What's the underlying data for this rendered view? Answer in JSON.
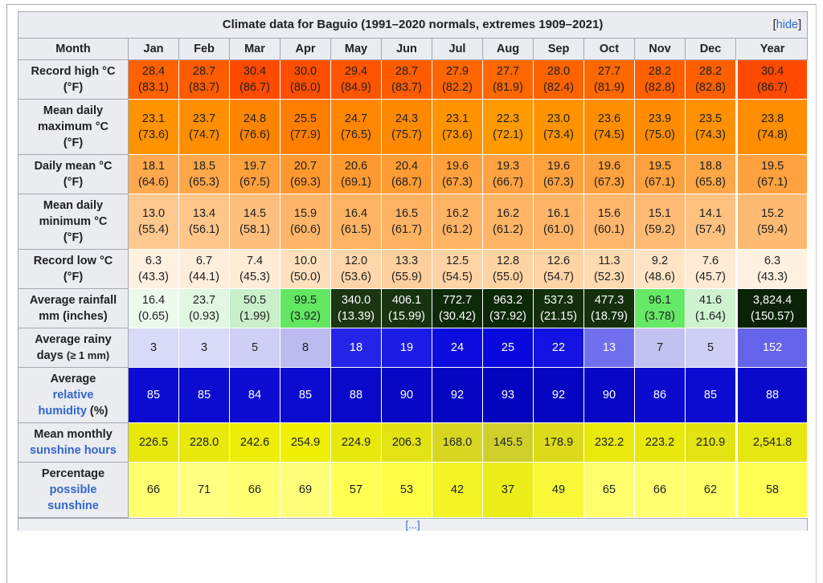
{
  "colors": {
    "link": "#3366cc",
    "header_bg": "#eaecf0",
    "border": "#a2a9b1"
  },
  "title": {
    "text": "Climate data for Baguio (1991–2020 normals, extremes 1909–2021)",
    "hide_open": "[",
    "hide_label": "hide",
    "hide_close": "]"
  },
  "columns": [
    "Month",
    "Jan",
    "Feb",
    "Mar",
    "Apr",
    "May",
    "Jun",
    "Jul",
    "Aug",
    "Sep",
    "Oct",
    "Nov",
    "Dec",
    "Year"
  ],
  "rows": [
    {
      "id": "record-high",
      "label_lines": [
        [
          {
            "t": "Record high °C"
          }
        ],
        [
          {
            "t": "(°F)"
          }
        ]
      ],
      "cells": [
        {
          "v": "28.4",
          "s": "(83.1)",
          "bg": "#ff6000"
        },
        {
          "v": "28.7",
          "s": "(83.7)",
          "bg": "#ff5c00"
        },
        {
          "v": "30.4",
          "s": "(86.7)",
          "bg": "#ff4a00"
        },
        {
          "v": "30.0",
          "s": "(86.0)",
          "bg": "#ff4e00"
        },
        {
          "v": "29.4",
          "s": "(84.9)",
          "bg": "#ff5400"
        },
        {
          "v": "28.7",
          "s": "(83.7)",
          "bg": "#ff5c00"
        },
        {
          "v": "27.9",
          "s": "(82.2)",
          "bg": "#ff6500"
        },
        {
          "v": "27.7",
          "s": "(81.9)",
          "bg": "#ff6700"
        },
        {
          "v": "28.0",
          "s": "(82.4)",
          "bg": "#ff6300"
        },
        {
          "v": "27.7",
          "s": "(81.9)",
          "bg": "#ff6700"
        },
        {
          "v": "28.2",
          "s": "(82.8)",
          "bg": "#ff5f00"
        },
        {
          "v": "28.2",
          "s": "(82.8)",
          "bg": "#ff5f00"
        },
        {
          "v": "30.4",
          "s": "(86.7)",
          "bg": "#ff4a00"
        }
      ]
    },
    {
      "id": "mean-daily-max",
      "label_lines": [
        [
          {
            "t": "Mean daily"
          }
        ],
        [
          {
            "t": "maximum °C"
          }
        ],
        [
          {
            "t": "(°F)"
          }
        ]
      ],
      "cells": [
        {
          "v": "23.1",
          "s": "(73.6)",
          "bg": "#ff9300"
        },
        {
          "v": "23.7",
          "s": "(74.7)",
          "bg": "#ff8e00"
        },
        {
          "v": "24.8",
          "s": "(76.6)",
          "bg": "#ff8500"
        },
        {
          "v": "25.5",
          "s": "(77.9)",
          "bg": "#ff7e00"
        },
        {
          "v": "24.7",
          "s": "(76.5)",
          "bg": "#ff8600"
        },
        {
          "v": "24.3",
          "s": "(75.7)",
          "bg": "#ff8900"
        },
        {
          "v": "23.1",
          "s": "(73.6)",
          "bg": "#ff9300"
        },
        {
          "v": "22.3",
          "s": "(72.1)",
          "bg": "#ff9a00"
        },
        {
          "v": "23.0",
          "s": "(73.4)",
          "bg": "#ff9400"
        },
        {
          "v": "23.6",
          "s": "(74.5)",
          "bg": "#ff8f00"
        },
        {
          "v": "23.9",
          "s": "(75.0)",
          "bg": "#ff8c00"
        },
        {
          "v": "23.5",
          "s": "(74.3)",
          "bg": "#ff9000"
        },
        {
          "v": "23.8",
          "s": "(74.8)",
          "bg": "#ff8d00"
        }
      ]
    },
    {
      "id": "daily-mean",
      "label_lines": [
        [
          {
            "t": "Daily mean °C"
          }
        ],
        [
          {
            "t": "(°F)"
          }
        ]
      ],
      "cells": [
        {
          "v": "18.1",
          "s": "(64.6)",
          "bg": "#ffa94e"
        },
        {
          "v": "18.5",
          "s": "(65.3)",
          "bg": "#ffa749"
        },
        {
          "v": "19.7",
          "s": "(67.5)",
          "bg": "#ffa03c"
        },
        {
          "v": "20.7",
          "s": "(69.3)",
          "bg": "#ff992f"
        },
        {
          "v": "20.6",
          "s": "(69.1)",
          "bg": "#ff9930"
        },
        {
          "v": "20.4",
          "s": "(68.7)",
          "bg": "#ff9b33"
        },
        {
          "v": "19.6",
          "s": "(67.3)",
          "bg": "#ffa13d"
        },
        {
          "v": "19.3",
          "s": "(66.7)",
          "bg": "#ffa342"
        },
        {
          "v": "19.6",
          "s": "(67.3)",
          "bg": "#ffa13d"
        },
        {
          "v": "19.6",
          "s": "(67.3)",
          "bg": "#ffa13d"
        },
        {
          "v": "19.5",
          "s": "(67.1)",
          "bg": "#ffa13e"
        },
        {
          "v": "18.8",
          "s": "(65.8)",
          "bg": "#ffa646"
        },
        {
          "v": "19.5",
          "s": "(67.1)",
          "bg": "#ffa13e"
        }
      ]
    },
    {
      "id": "mean-daily-min",
      "label_lines": [
        [
          {
            "t": "Mean daily"
          }
        ],
        [
          {
            "t": "minimum °C"
          }
        ],
        [
          {
            "t": "(°F)"
          }
        ]
      ],
      "cells": [
        {
          "v": "13.0",
          "s": "(55.4)",
          "bg": "#ffc88f"
        },
        {
          "v": "13.4",
          "s": "(56.1)",
          "bg": "#ffc689"
        },
        {
          "v": "14.5",
          "s": "(58.1)",
          "bg": "#ffbf7c"
        },
        {
          "v": "15.9",
          "s": "(60.6)",
          "bg": "#ffb669"
        },
        {
          "v": "16.4",
          "s": "(61.5)",
          "bg": "#ffb363"
        },
        {
          "v": "16.5",
          "s": "(61.7)",
          "bg": "#ffb262"
        },
        {
          "v": "16.2",
          "s": "(61.2)",
          "bg": "#ffb466"
        },
        {
          "v": "16.2",
          "s": "(61.2)",
          "bg": "#ffb466"
        },
        {
          "v": "16.1",
          "s": "(61.0)",
          "bg": "#ffb467"
        },
        {
          "v": "15.6",
          "s": "(60.1)",
          "bg": "#ffb76d"
        },
        {
          "v": "15.1",
          "s": "(59.2)",
          "bg": "#ffbb74"
        },
        {
          "v": "14.1",
          "s": "(57.4)",
          "bg": "#ffc180"
        },
        {
          "v": "15.2",
          "s": "(59.4)",
          "bg": "#ffba72"
        }
      ]
    },
    {
      "id": "record-low",
      "label_lines": [
        [
          {
            "t": "Record low °C"
          }
        ],
        [
          {
            "t": "(°F)"
          }
        ]
      ],
      "cells": [
        {
          "v": "6.3",
          "s": "(43.3)",
          "bg": "#fff0e0"
        },
        {
          "v": "6.7",
          "s": "(44.1)",
          "bg": "#ffeedc"
        },
        {
          "v": "7.4",
          "s": "(45.3)",
          "bg": "#ffecd6"
        },
        {
          "v": "10.0",
          "s": "(50.0)",
          "bg": "#ffe0bd"
        },
        {
          "v": "12.0",
          "s": "(53.6)",
          "bg": "#ffd6a9"
        },
        {
          "v": "13.3",
          "s": "(55.9)",
          "bg": "#ffd09e"
        },
        {
          "v": "12.5",
          "s": "(54.5)",
          "bg": "#ffd4a5"
        },
        {
          "v": "12.8",
          "s": "(55.0)",
          "bg": "#ffd3a2"
        },
        {
          "v": "12.6",
          "s": "(54.7)",
          "bg": "#ffd4a4"
        },
        {
          "v": "11.3",
          "s": "(52.3)",
          "bg": "#ffdab0"
        },
        {
          "v": "9.2",
          "s": "(48.6)",
          "bg": "#ffe4c5"
        },
        {
          "v": "7.6",
          "s": "(45.7)",
          "bg": "#ffebd4"
        },
        {
          "v": "6.3",
          "s": "(43.3)",
          "bg": "#fff0e0"
        }
      ]
    },
    {
      "id": "avg-rainfall",
      "label_lines": [
        [
          {
            "t": "Average rainfall"
          }
        ],
        [
          {
            "t": "mm (inches)"
          }
        ]
      ],
      "cells": [
        {
          "v": "16.4",
          "s": "(0.65)",
          "bg": "#ecfaec"
        },
        {
          "v": "23.7",
          "s": "(0.93)",
          "bg": "#e2f7e2"
        },
        {
          "v": "50.5",
          "s": "(1.99)",
          "bg": "#c9f0c9"
        },
        {
          "v": "99.5",
          "s": "(3.92)",
          "bg": "#62e762"
        },
        {
          "v": "340.0",
          "s": "(13.39)",
          "bg": "#1a3612",
          "fg": "#ffffff"
        },
        {
          "v": "406.1",
          "s": "(15.99)",
          "bg": "#17330f",
          "fg": "#ffffff"
        },
        {
          "v": "772.7",
          "s": "(30.42)",
          "bg": "#0e2b09",
          "fg": "#ffffff"
        },
        {
          "v": "963.2",
          "s": "(37.92)",
          "bg": "#0b2807",
          "fg": "#ffffff"
        },
        {
          "v": "537.3",
          "s": "(21.15)",
          "bg": "#132f0c",
          "fg": "#ffffff"
        },
        {
          "v": "477.3",
          "s": "(18.79)",
          "bg": "#14300d",
          "fg": "#ffffff"
        },
        {
          "v": "96.1",
          "s": "(3.78)",
          "bg": "#66e966"
        },
        {
          "v": "41.6",
          "s": "(1.64)",
          "bg": "#cff2cf"
        },
        {
          "v": "3,824.4",
          "s": "(150.57)",
          "bg": "#0a2306",
          "fg": "#ffffff"
        }
      ]
    },
    {
      "id": "avg-rainy-days",
      "label_lines": [
        [
          {
            "t": "Average rainy"
          }
        ],
        [
          {
            "t": "days "
          },
          {
            "t": "(≥ 1 mm)",
            "small": true
          }
        ]
      ],
      "cells": [
        {
          "v": "3",
          "bg": "#d9d9f8"
        },
        {
          "v": "3",
          "bg": "#d9d9f8"
        },
        {
          "v": "5",
          "bg": "#cfcff6"
        },
        {
          "v": "8",
          "bg": "#bbbbf0"
        },
        {
          "v": "18",
          "bg": "#2424e9",
          "fg": "#ffffff"
        },
        {
          "v": "19",
          "bg": "#1c1ce7",
          "fg": "#ffffff"
        },
        {
          "v": "24",
          "bg": "#0c0cdf",
          "fg": "#ffffff"
        },
        {
          "v": "25",
          "bg": "#0909dd",
          "fg": "#ffffff"
        },
        {
          "v": "22",
          "bg": "#1212e2",
          "fg": "#ffffff"
        },
        {
          "v": "13",
          "bg": "#7070ee",
          "fg": "#ffffff"
        },
        {
          "v": "7",
          "bg": "#c2c2f2"
        },
        {
          "v": "5",
          "bg": "#cfcff6"
        },
        {
          "v": "152",
          "bg": "#6464ea",
          "fg": "#ffffff"
        }
      ]
    },
    {
      "id": "avg-relative-humidity",
      "label_lines": [
        [
          {
            "t": "Average"
          }
        ],
        [
          {
            "t": "relative",
            "link": true
          }
        ],
        [
          {
            "t": "humidity",
            "link": true
          },
          {
            "t": " (%)"
          }
        ]
      ],
      "cells": [
        {
          "v": "85",
          "bg": "#0c0cd0",
          "fg": "#ffffff"
        },
        {
          "v": "85",
          "bg": "#0c0cd0",
          "fg": "#ffffff"
        },
        {
          "v": "84",
          "bg": "#0d0dd2",
          "fg": "#ffffff"
        },
        {
          "v": "85",
          "bg": "#0c0cd0",
          "fg": "#ffffff"
        },
        {
          "v": "88",
          "bg": "#0909ca",
          "fg": "#ffffff"
        },
        {
          "v": "90",
          "bg": "#0707c5",
          "fg": "#ffffff"
        },
        {
          "v": "92",
          "bg": "#0505c1",
          "fg": "#ffffff"
        },
        {
          "v": "93",
          "bg": "#0404bf",
          "fg": "#ffffff"
        },
        {
          "v": "92",
          "bg": "#0505c1",
          "fg": "#ffffff"
        },
        {
          "v": "90",
          "bg": "#0707c5",
          "fg": "#ffffff"
        },
        {
          "v": "86",
          "bg": "#0b0bce",
          "fg": "#ffffff"
        },
        {
          "v": "85",
          "bg": "#0c0cd0",
          "fg": "#ffffff"
        },
        {
          "v": "88",
          "bg": "#0909ca",
          "fg": "#ffffff"
        }
      ]
    },
    {
      "id": "mean-monthly-sunshine-hours",
      "label_lines": [
        [
          {
            "t": "Mean monthly"
          }
        ],
        [
          {
            "t": "sunshine hours",
            "link": true
          }
        ]
      ],
      "cells": [
        {
          "v": "226.5",
          "bg": "#e8e80d"
        },
        {
          "v": "228.0",
          "bg": "#e8e80c"
        },
        {
          "v": "242.6",
          "bg": "#eded07"
        },
        {
          "v": "254.9",
          "bg": "#f0f004"
        },
        {
          "v": "224.9",
          "bg": "#e8e80d"
        },
        {
          "v": "206.3",
          "bg": "#e2e214"
        },
        {
          "v": "168.0",
          "bg": "#d7d721"
        },
        {
          "v": "145.5",
          "bg": "#cfcf2b"
        },
        {
          "v": "178.9",
          "bg": "#dbdb1c"
        },
        {
          "v": "232.2",
          "bg": "#e9e90b"
        },
        {
          "v": "223.2",
          "bg": "#e8e80d"
        },
        {
          "v": "210.9",
          "bg": "#e3e313"
        },
        {
          "v": "2,541.8",
          "bg": "#e6e610"
        }
      ]
    },
    {
      "id": "percent-possible-sunshine",
      "label_lines": [
        [
          {
            "t": "Percentage"
          }
        ],
        [
          {
            "t": "possible",
            "link": true
          }
        ],
        [
          {
            "t": "sunshine",
            "link": true
          }
        ]
      ],
      "cells": [
        {
          "v": "66",
          "bg": "#ffff70"
        },
        {
          "v": "71",
          "bg": "#ffff80"
        },
        {
          "v": "66",
          "bg": "#ffff70"
        },
        {
          "v": "69",
          "bg": "#ffff7a"
        },
        {
          "v": "57",
          "bg": "#ffff54"
        },
        {
          "v": "53",
          "bg": "#fdfd46"
        },
        {
          "v": "42",
          "bg": "#f3f326"
        },
        {
          "v": "37",
          "bg": "#eded1a"
        },
        {
          "v": "49",
          "bg": "#f9f93a"
        },
        {
          "v": "65",
          "bg": "#ffff6e"
        },
        {
          "v": "66",
          "bg": "#ffff70"
        },
        {
          "v": "62",
          "bg": "#ffff66"
        },
        {
          "v": "58",
          "bg": "#ffff56"
        }
      ]
    }
  ],
  "footer": {
    "source_hint": "[...]"
  }
}
